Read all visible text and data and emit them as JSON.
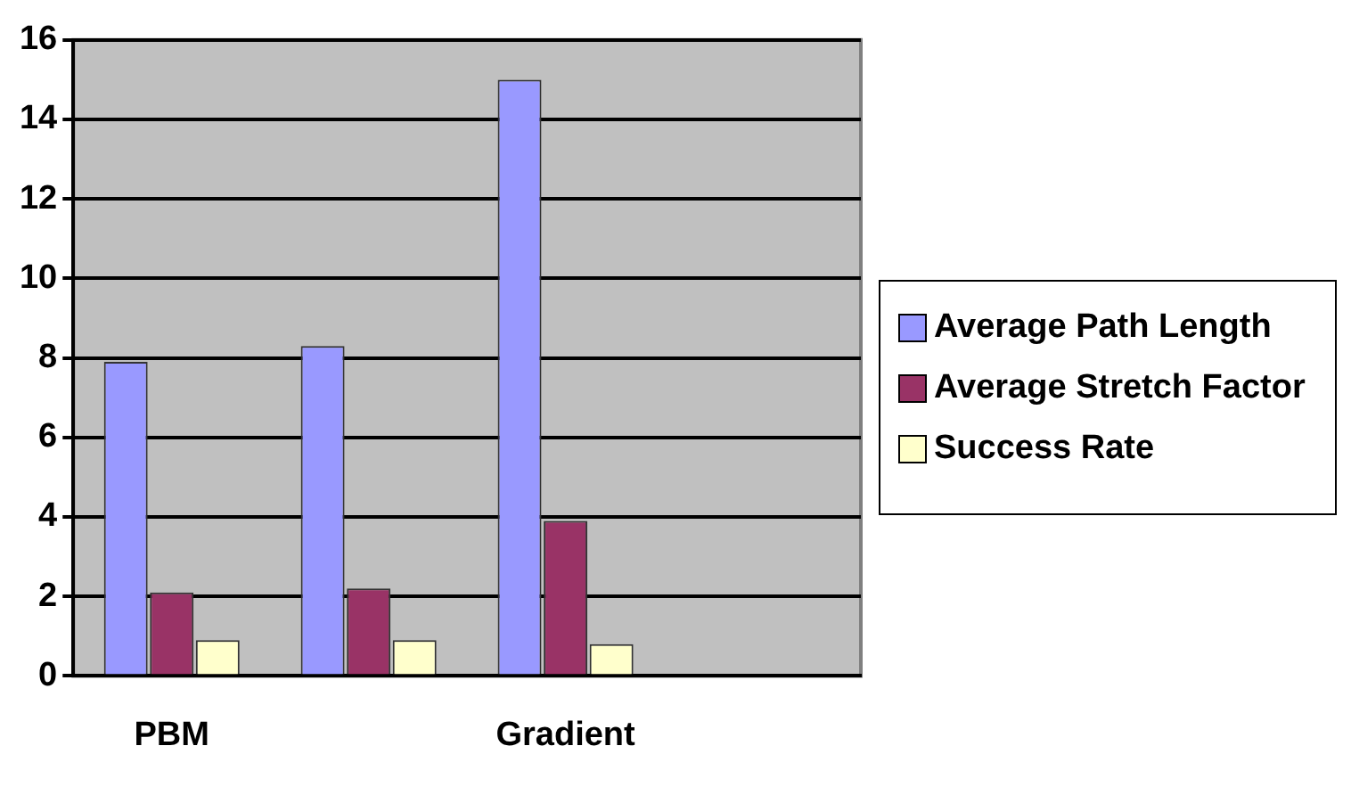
{
  "chart_data": {
    "type": "bar",
    "categories": [
      "PBM",
      null,
      "Gradient",
      null
    ],
    "series": [
      {
        "name": "Average Path Length",
        "color": "#9999ff",
        "values": [
          7.9,
          8.3,
          15.0,
          null
        ]
      },
      {
        "name": "Average Stretch Factor",
        "color": "#993366",
        "values": [
          2.1,
          2.2,
          3.9,
          null
        ]
      },
      {
        "name": "Success Rate",
        "color": "#ffffcc",
        "values": [
          0.9,
          0.9,
          0.8,
          null
        ]
      }
    ],
    "ylim": [
      0,
      16
    ],
    "yticks": [
      0,
      2,
      4,
      6,
      8,
      10,
      12,
      14,
      16
    ],
    "grid": "y",
    "legend": "right"
  }
}
